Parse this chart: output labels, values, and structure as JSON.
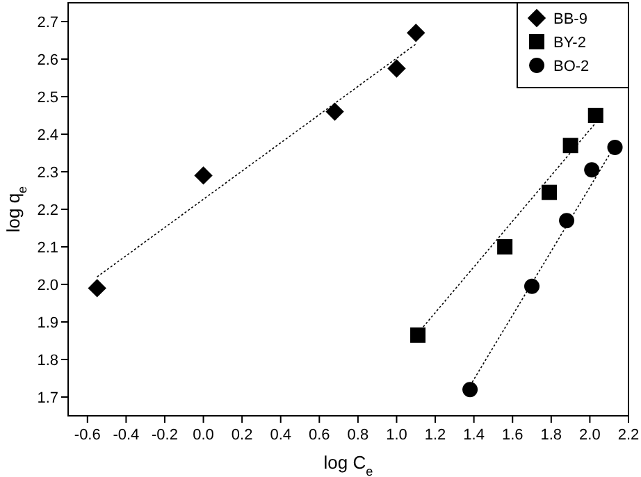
{
  "chart_data": {
    "type": "scatter",
    "xlabel": "log C$_{e}$",
    "ylabel": "log q$_{e}$",
    "xlim": [
      -0.7,
      2.2
    ],
    "ylim": [
      1.65,
      2.75
    ],
    "xticks": [
      -0.6,
      -0.4,
      -0.2,
      {
        "value": 0,
        "label": "0.0"
      },
      0.2,
      0.4,
      0.6,
      0.8,
      {
        "value": 1,
        "label": "1.0"
      },
      1.2,
      1.4,
      1.6,
      1.8,
      {
        "value": 2,
        "label": "2.0"
      },
      2.2
    ],
    "yticks": [
      1.7,
      1.8,
      1.9,
      {
        "value": 2,
        "label": "2.0"
      },
      2.1,
      2.2,
      2.3,
      2.4,
      2.5,
      2.6,
      2.7
    ],
    "grid": false,
    "legend": "top right",
    "series": [
      {
        "name": "BB-9",
        "color": "#000000",
        "marker": "diamond",
        "x": [
          -0.55,
          0,
          0.68,
          1.0,
          1.1
        ],
        "values": [
          1.99,
          2.29,
          2.46,
          2.575,
          2.67
        ]
      },
      {
        "name": "BY-2",
        "color": "#000000",
        "marker": "square",
        "x": [
          1.11,
          1.56,
          1.79,
          1.9,
          2.03
        ],
        "values": [
          1.865,
          2.1,
          2.245,
          2.37,
          2.45
        ]
      },
      {
        "name": "BO-2",
        "color": "#000000",
        "marker": "circle",
        "x": [
          1.38,
          1.7,
          1.88,
          2.01,
          2.13
        ],
        "values": [
          1.72,
          1.995,
          2.17,
          2.305,
          2.365
        ]
      },
      {
        "type": "line",
        "color": "#000000",
        "marker": "none",
        "line_style": "dotted",
        "x": [
          -0.55,
          1.1
        ],
        "values": [
          2.02,
          2.64
        ]
      },
      {
        "type": "line",
        "color": "#000000",
        "marker": "none",
        "line_style": "dotted",
        "x": [
          1.11,
          2.03
        ],
        "values": [
          1.87,
          2.43
        ]
      },
      {
        "type": "line",
        "color": "#000000",
        "marker": "none",
        "line_style": "dotted",
        "x": [
          1.38,
          2.13
        ],
        "values": [
          1.73,
          2.37
        ]
      }
    ]
  }
}
